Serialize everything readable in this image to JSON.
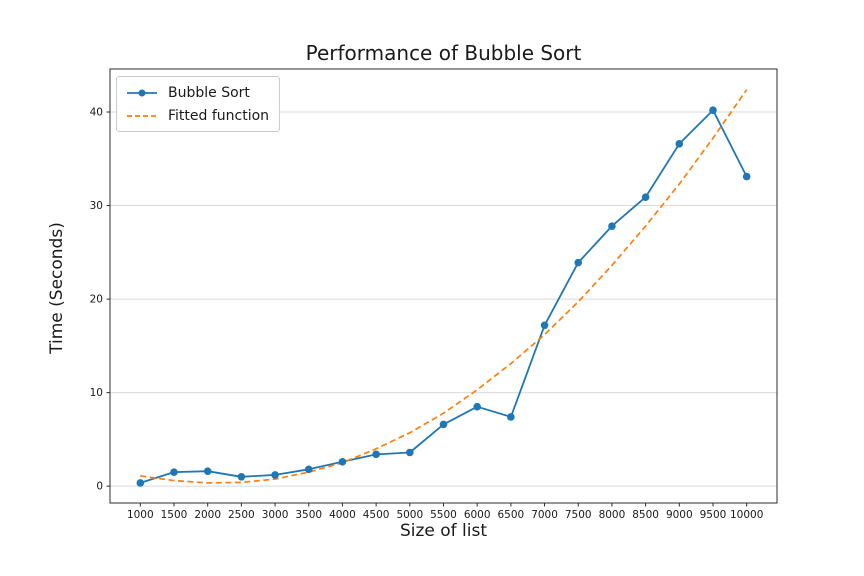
{
  "figure": {
    "background": "#ffffff",
    "grid_color": "#d9d9d9",
    "spine_color": "#2b2b2b",
    "text_color": "#1a1a1a",
    "legend_border_color": "#cccccc"
  },
  "chart_data": {
    "type": "line",
    "title": "Performance of Bubble Sort",
    "xlabel": "Size of list",
    "ylabel": "Time (Seconds)",
    "x": [
      1000,
      1500,
      2000,
      2500,
      3000,
      3500,
      4000,
      4500,
      5000,
      5500,
      6000,
      6500,
      7000,
      7500,
      8000,
      8500,
      9000,
      9500,
      10000
    ],
    "series": [
      {
        "name": "Bubble Sort",
        "color": "#1f77b4",
        "line_style": "solid",
        "marker": "circle",
        "values": [
          0.35,
          1.5,
          1.6,
          1.0,
          1.2,
          1.8,
          2.6,
          3.4,
          3.6,
          6.6,
          8.5,
          7.4,
          17.2,
          23.9,
          27.8,
          30.9,
          36.6,
          40.2,
          33.1
        ]
      },
      {
        "name": "Fitted function",
        "color": "#ff7f0e",
        "line_style": "dashed",
        "marker": "none",
        "values": [
          1.1,
          0.6,
          0.35,
          0.4,
          0.75,
          1.5,
          2.5,
          4.0,
          5.7,
          7.8,
          10.3,
          13.1,
          16.2,
          19.7,
          23.6,
          27.8,
          32.3,
          37.2,
          42.4
        ]
      }
    ],
    "xticks": [
      1000,
      1500,
      2000,
      2500,
      3000,
      3500,
      4000,
      4500,
      5000,
      5500,
      6000,
      6500,
      7000,
      7500,
      8000,
      8500,
      9000,
      9500,
      10000
    ],
    "yticks": [
      0,
      10,
      20,
      30,
      40
    ],
    "xlim": [
      550,
      10450
    ],
    "ylim": [
      -1.8,
      44.6
    ],
    "grid": "horizontal",
    "legend_position": "upper-left"
  }
}
